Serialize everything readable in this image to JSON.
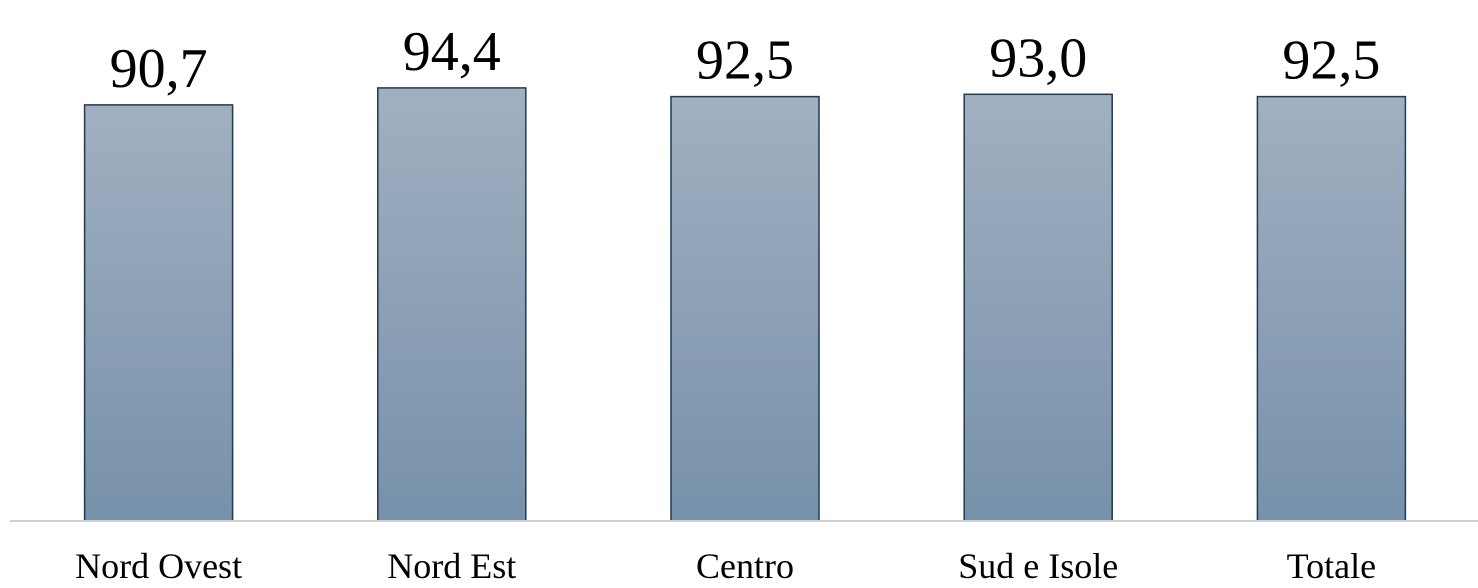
{
  "chart_data": {
    "type": "bar",
    "categories": [
      "Nord Ovest",
      "Nord Est",
      "Centro",
      "Sud e Isole",
      "Totale"
    ],
    "values": [
      90.7,
      94.4,
      92.5,
      93.0,
      92.5
    ],
    "value_labels": [
      "90,7",
      "94,4",
      "92,5",
      "93,0",
      "92,5"
    ],
    "title": "",
    "xlabel": "",
    "ylabel": "",
    "ylim": [
      0,
      100
    ],
    "grid": false,
    "legend": "none",
    "colors": {
      "bar_top": "#a1b0c1",
      "bar_bottom": "#7791aa",
      "bar_border": "#1f3a52",
      "axis": "#d0d0d0"
    }
  }
}
